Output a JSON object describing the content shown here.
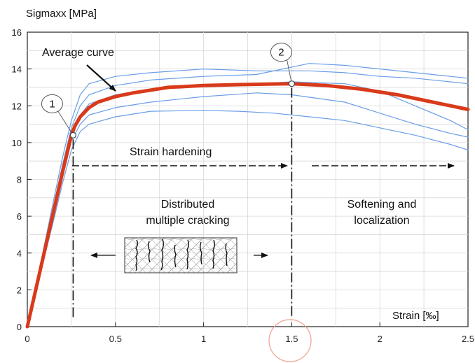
{
  "chart_data": {
    "type": "line",
    "ylabel": "Sigmaxx [MPa]",
    "xlabel": "Strain [‰]",
    "xlim": [
      0,
      2.5
    ],
    "ylim": [
      0,
      16
    ],
    "xticks": [
      0,
      0.5,
      1,
      1.5,
      2,
      2.5
    ],
    "xtick_labels": [
      "0",
      "0.5",
      "1",
      "1.5",
      "2",
      "2.5"
    ],
    "yticks": [
      0,
      2,
      4,
      6,
      8,
      10,
      12,
      14,
      16
    ],
    "ytick_labels": [
      "0",
      "2",
      "4",
      "6",
      "8",
      "10",
      "12",
      "14",
      "16"
    ],
    "grid": true,
    "colors": {
      "average": "#d93a1a",
      "specimens": "#6a9ee8",
      "highlight_circle": "#f0a090"
    },
    "series": [
      {
        "name": "Average curve",
        "emphasis": true,
        "x": [
          0,
          0.05,
          0.1,
          0.15,
          0.2,
          0.25,
          0.27,
          0.3,
          0.35,
          0.4,
          0.5,
          0.6,
          0.8,
          1.0,
          1.2,
          1.5,
          1.7,
          1.9,
          2.1,
          2.3,
          2.5
        ],
        "y": [
          0,
          2.1,
          4.2,
          6.3,
          8.4,
          10.4,
          10.9,
          11.4,
          11.9,
          12.2,
          12.5,
          12.7,
          13.0,
          13.1,
          13.15,
          13.2,
          13.1,
          12.9,
          12.6,
          12.2,
          11.8
        ]
      },
      {
        "x": [
          0,
          0.05,
          0.1,
          0.15,
          0.2,
          0.25,
          0.3,
          0.35,
          0.5,
          0.7,
          1.0,
          1.3,
          1.6,
          1.8,
          2.0,
          2.2,
          2.4,
          2.5
        ],
        "y": [
          0,
          2.3,
          4.6,
          6.9,
          9.2,
          11.2,
          12.6,
          13.2,
          13.6,
          13.8,
          14.0,
          13.9,
          13.9,
          13.8,
          13.6,
          13.5,
          13.3,
          13.2
        ]
      },
      {
        "x": [
          0,
          0.05,
          0.1,
          0.15,
          0.2,
          0.25,
          0.3,
          0.35,
          0.5,
          0.7,
          1.0,
          1.3,
          1.6,
          1.8,
          2.0,
          2.2,
          2.4,
          2.5
        ],
        "y": [
          0,
          2.2,
          4.4,
          6.6,
          8.8,
          10.8,
          12.0,
          12.6,
          13.1,
          13.4,
          13.6,
          13.7,
          14.3,
          14.2,
          14.0,
          13.8,
          13.6,
          13.5
        ]
      },
      {
        "x": [
          0,
          0.05,
          0.1,
          0.15,
          0.2,
          0.25,
          0.3,
          0.35,
          0.5,
          0.7,
          1.0,
          1.3,
          1.5,
          1.8,
          2.0,
          2.2,
          2.4,
          2.5
        ],
        "y": [
          0,
          2.1,
          4.2,
          6.3,
          8.4,
          10.4,
          11.5,
          12.1,
          12.6,
          12.9,
          13.1,
          13.2,
          13.3,
          13.2,
          12.8,
          12.0,
          11.2,
          10.7
        ]
      },
      {
        "x": [
          0,
          0.05,
          0.1,
          0.15,
          0.2,
          0.25,
          0.3,
          0.35,
          0.5,
          0.7,
          1.0,
          1.3,
          1.5,
          1.8,
          2.0,
          2.2,
          2.4,
          2.5
        ],
        "y": [
          0,
          2.0,
          4.1,
          6.1,
          8.2,
          10.1,
          11.0,
          11.5,
          11.9,
          12.2,
          12.5,
          12.7,
          12.6,
          12.2,
          11.6,
          11.0,
          10.5,
          10.3
        ]
      },
      {
        "x": [
          0,
          0.05,
          0.1,
          0.15,
          0.2,
          0.25,
          0.3,
          0.35,
          0.5,
          0.7,
          1.0,
          1.2,
          1.4,
          1.6,
          1.8,
          2.0,
          2.2,
          2.4,
          2.5
        ],
        "y": [
          0,
          1.9,
          3.9,
          5.8,
          7.8,
          9.6,
          10.6,
          11.0,
          11.4,
          11.7,
          11.75,
          11.7,
          11.6,
          11.4,
          11.2,
          10.8,
          10.4,
          9.9,
          9.6
        ]
      }
    ],
    "points": [
      {
        "label": "1",
        "x": 0.26,
        "y": 10.4
      },
      {
        "label": "2",
        "x": 1.5,
        "y": 13.2
      }
    ],
    "vlines": [
      0.26,
      1.5
    ],
    "annotations": {
      "average_curve": "Average curve",
      "strain_hardening": "Strain hardening",
      "distributed_line1": "Distributed",
      "distributed_line2": "multiple cracking",
      "softening_line1": "Softening and",
      "softening_line2": "localization"
    }
  }
}
